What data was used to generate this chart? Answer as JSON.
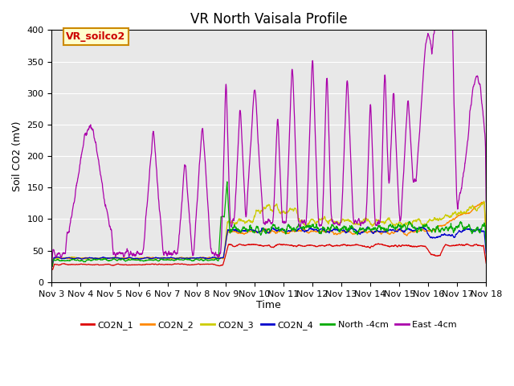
{
  "title": "VR North Vaisala Profile",
  "ylabel": "Soil CO2 (mV)",
  "xlabel": "Time",
  "xlim": [
    0,
    15
  ],
  "ylim": [
    0,
    400
  ],
  "yticks": [
    0,
    50,
    100,
    150,
    200,
    250,
    300,
    350,
    400
  ],
  "xtick_labels": [
    "Nov 3",
    "Nov 4",
    "Nov 5",
    "Nov 6",
    "Nov 7",
    "Nov 8",
    "Nov 9",
    "Nov 10",
    "Nov 11",
    "Nov 12",
    "Nov 13",
    "Nov 14",
    "Nov 15",
    "Nov 16",
    "Nov 17",
    "Nov 18"
  ],
  "series_colors": {
    "CO2N_1": "#dd0000",
    "CO2N_2": "#ff8800",
    "CO2N_3": "#cccc00",
    "CO2N_4": "#0000cc",
    "North_4cm": "#00aa00",
    "East_4cm": "#aa00aa"
  },
  "legend_labels": [
    "CO2N_1",
    "CO2N_2",
    "CO2N_3",
    "CO2N_4",
    "North -4cm",
    "East -4cm"
  ],
  "annotation_text": "VR_soilco2",
  "annotation_color": "#cc0000",
  "annotation_bg": "#ffffcc",
  "annotation_border": "#cc8800",
  "plot_bg_color": "#e8e8e8",
  "title_fontsize": 12,
  "axis_fontsize": 9,
  "tick_fontsize": 8,
  "legend_fontsize": 8
}
